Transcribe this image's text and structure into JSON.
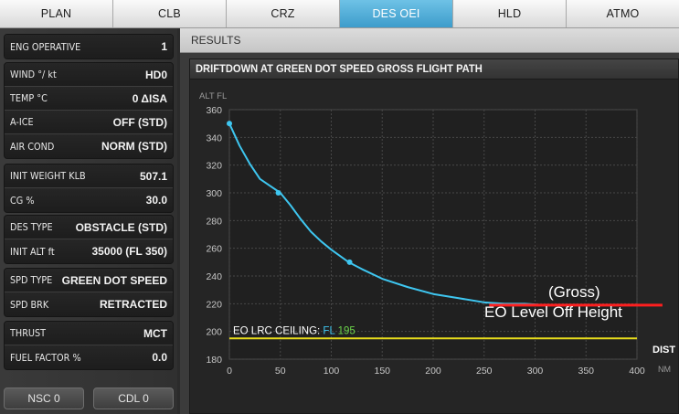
{
  "tabs": [
    {
      "label": "PLAN",
      "active": false
    },
    {
      "label": "CLB",
      "active": false
    },
    {
      "label": "CRZ",
      "active": false
    },
    {
      "label": "DES OEI",
      "active": true
    },
    {
      "label": "HLD",
      "active": false
    },
    {
      "label": "ATMO",
      "active": false
    }
  ],
  "inputs": {
    "eng_operative": {
      "label": "ENG OPERATIVE",
      "value": "1"
    },
    "wind": {
      "label": "WIND °/ kt",
      "value": "HD0"
    },
    "temp": {
      "label": "TEMP °C",
      "value": "0 ΔISA"
    },
    "a_ice": {
      "label": "A-ICE",
      "value": "OFF (STD)"
    },
    "air_cond": {
      "label": "AIR COND",
      "value": "NORM (STD)"
    },
    "init_weight": {
      "label": "INIT WEIGHT KLB",
      "value": "507.1"
    },
    "cg": {
      "label": "CG %",
      "value": "30.0"
    },
    "des_type": {
      "label": "DES TYPE",
      "value": "OBSTACLE (STD)"
    },
    "init_alt": {
      "label": "INIT ALT ft",
      "value": "35000 (FL 350)"
    },
    "spd_type": {
      "label": "SPD TYPE",
      "value": "GREEN DOT SPEED"
    },
    "spd_brk": {
      "label": "SPD BRK",
      "value": "RETRACTED"
    },
    "thrust": {
      "label": "THRUST",
      "value": "MCT"
    },
    "fuel_factor": {
      "label": "FUEL FACTOR %",
      "value": "0.0"
    }
  },
  "buttons": {
    "nsc": "NSC 0",
    "cdl": "CDL 0"
  },
  "results": {
    "header": "RESULTS",
    "chart_title": "DRIFTDOWN AT GREEN DOT SPEED GROSS FLIGHT PATH"
  },
  "colors": {
    "active_tab": "#4aa8d6",
    "curve": "#3ec6f0",
    "ceiling_line": "#e8dc1c",
    "ceiling_value": "#6cd44a",
    "level_off_marker": "#ff1f1f"
  },
  "chart_data": {
    "type": "line",
    "ylabel": "ALT FL",
    "xlabel": "DIST",
    "xunit": "NM",
    "xlim": [
      0,
      400
    ],
    "ylim": [
      180,
      360
    ],
    "xticks": [
      0,
      50,
      100,
      150,
      200,
      250,
      300,
      350,
      400
    ],
    "yticks": [
      180,
      200,
      220,
      240,
      260,
      280,
      300,
      320,
      340,
      360
    ],
    "grid": true,
    "series": [
      {
        "x": [
          0,
          10,
          20,
          30,
          40,
          50,
          60,
          70,
          80,
          90,
          100,
          117,
          130,
          150,
          175,
          200,
          225,
          250,
          270,
          290,
          310,
          330,
          350,
          370,
          390,
          400
        ],
        "y": [
          350,
          334,
          321,
          310,
          305,
          300,
          291,
          281,
          272,
          265,
          259,
          250,
          245,
          238,
          232,
          227,
          224,
          221,
          220,
          220,
          219,
          219,
          219,
          219,
          219,
          219
        ]
      }
    ],
    "markers": [
      {
        "x": 0,
        "y": 350
      },
      {
        "x": 48,
        "y": 300
      },
      {
        "x": 118,
        "y": 250
      }
    ],
    "ceiling": {
      "label": "EO LRC CEILING: ",
      "fl_label": "FL",
      "value": "195",
      "y": 195
    },
    "annotation": {
      "line1": "(Gross)",
      "line2": "EO Level Off Height",
      "x_start": 255,
      "x_end": 425,
      "y": 219
    }
  }
}
